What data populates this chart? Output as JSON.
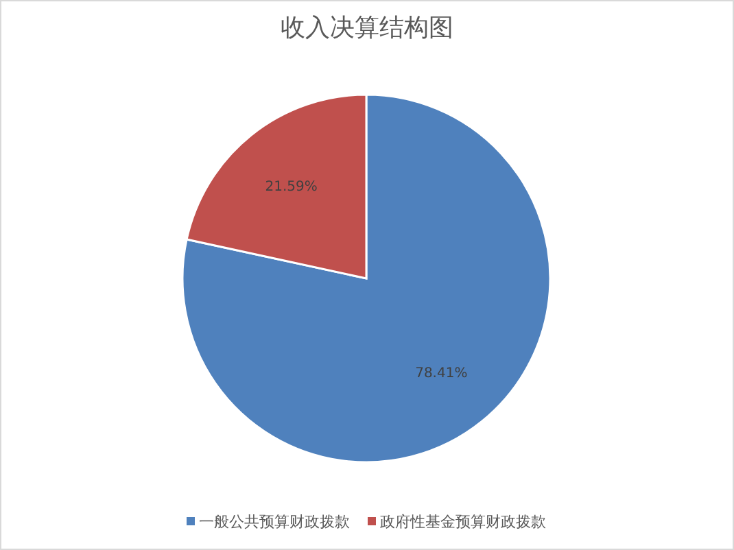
{
  "chart_data": {
    "type": "pie",
    "title": "收入决算结构图",
    "categories": [
      "一般公共预算财政拨款",
      "政府性基金预算财政拨款"
    ],
    "values": [
      78.41,
      21.59
    ],
    "colors": [
      "#4f81bd",
      "#c0504d"
    ],
    "value_labels": [
      "78.41%",
      "21.59%"
    ],
    "legend": "bottom"
  }
}
